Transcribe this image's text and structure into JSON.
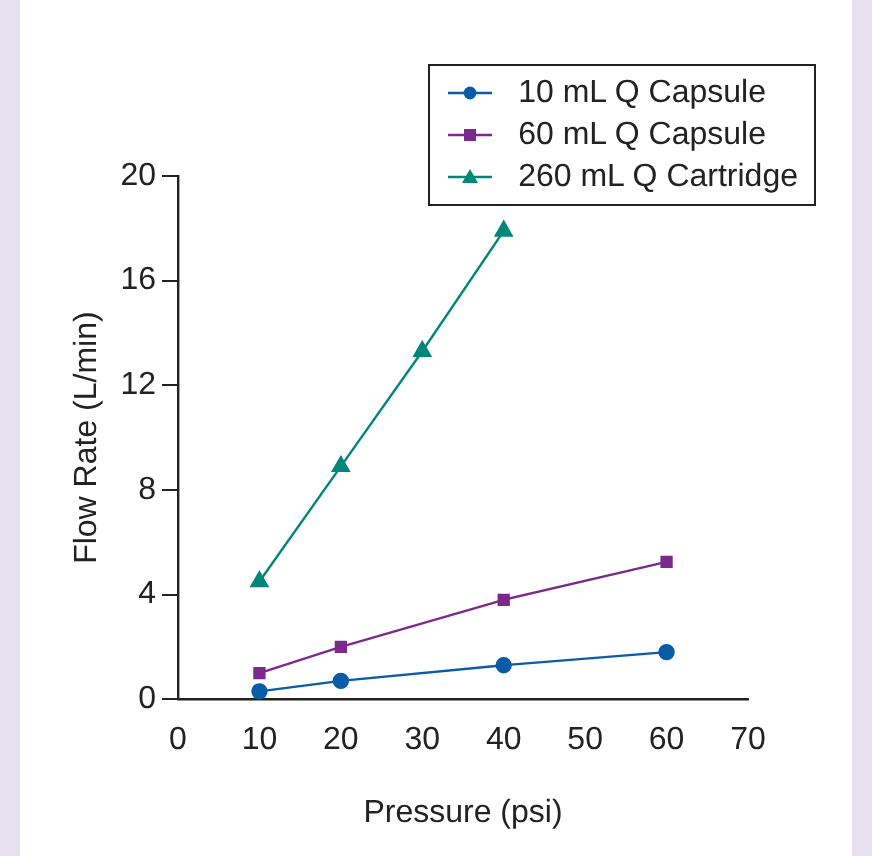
{
  "chart_data": {
    "type": "line",
    "xlabel": "Pressure (psi)",
    "ylabel": "Flow Rate (L/min)",
    "xlim": [
      0,
      70
    ],
    "xticks": [
      0,
      10,
      20,
      30,
      40,
      50,
      60,
      70
    ],
    "ylim": [
      0,
      20
    ],
    "yticks": [
      0,
      4,
      8,
      12,
      16,
      20
    ],
    "grid": false,
    "legend": "top right",
    "line_style": "solid",
    "series": [
      {
        "name": "10 mL Q Capsule",
        "color": "#0a5ca8",
        "marker": "circle",
        "x": [
          10,
          20,
          40,
          60
        ],
        "values": [
          0.3,
          0.7,
          1.3,
          1.8
        ]
      },
      {
        "name": "60 mL Q Capsule",
        "color": "#7b2a8c",
        "marker": "square",
        "x": [
          10,
          20,
          40,
          60
        ],
        "values": [
          1.0,
          2.0,
          3.8,
          5.25
        ]
      },
      {
        "name": "260 mL Q Cartridge",
        "color": "#00877a",
        "marker": "triangle",
        "x": [
          10,
          20,
          30,
          40
        ],
        "values": [
          4.5,
          8.9,
          13.3,
          17.9
        ]
      }
    ]
  }
}
